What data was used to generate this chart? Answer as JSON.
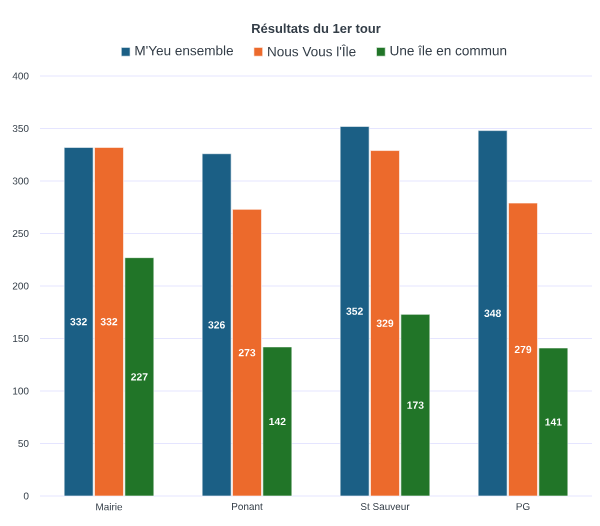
{
  "chart_data": {
    "type": "bar",
    "title": "Résultats du 1er tour",
    "categories": [
      "Mairie",
      "Ponant",
      "St Sauveur",
      "PG"
    ],
    "series": [
      {
        "name": "M'Yeu ensemble",
        "color": "#1b5f85",
        "values": [
          332,
          326,
          352,
          348
        ]
      },
      {
        "name": "Nous Vous l'Île",
        "color": "#ec6a2c",
        "values": [
          332,
          273,
          329,
          279
        ]
      },
      {
        "name": "Une île en commun",
        "color": "#217528",
        "values": [
          227,
          142,
          173,
          141
        ]
      }
    ],
    "ylim": [
      0,
      400
    ],
    "yticks": [
      0,
      50,
      100,
      150,
      200,
      250,
      300,
      350,
      400
    ],
    "grid": "y",
    "legend": "top",
    "data_labels": true
  }
}
